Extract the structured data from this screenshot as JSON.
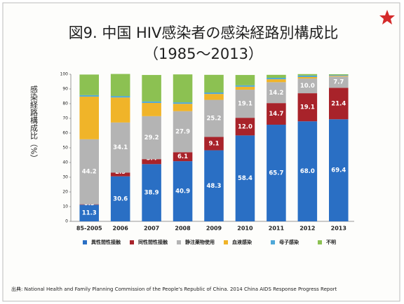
{
  "chart_data": {
    "type": "stacked_bar",
    "title": "図9. 中国 HIV感染者の感染経路別構成比",
    "subtitle": "（1985～2013）",
    "y_label": "感染経路構成比（%）",
    "source": "出典: National Health and Family Planning Commission of the People's Republic of China. 2014 China AIDS Response Progress Report",
    "categories": [
      "85-2005",
      "2006",
      "2007",
      "2008",
      "2009",
      "2010",
      "2011",
      "2012",
      "2013"
    ],
    "series": [
      {
        "name": "異性間性接触",
        "color": "#2a6fc4",
        "values": [
          11.3,
          30.6,
          38.9,
          40.9,
          48.3,
          58.4,
          65.7,
          68.0,
          69.4
        ],
        "value_labels": [
          "11.3",
          "30.6",
          "38.9",
          "40.9",
          "48.3",
          "58.4",
          "65.7",
          "68.0",
          "69.4"
        ]
      },
      {
        "name": "同性間性接触",
        "color": "#a8232a",
        "values": [
          0.3,
          2.5,
          3.4,
          6.1,
          9.1,
          12.0,
          14.7,
          19.1,
          21.4
        ],
        "value_labels": [
          "0.3",
          "2.5",
          "3.4",
          "6.1",
          "9.1",
          "12.0",
          "14.7",
          "19.1",
          "21.4"
        ]
      },
      {
        "name": "静注薬物使用",
        "color": "#b4b4b4",
        "values": [
          44.2,
          34.1,
          29.2,
          27.9,
          25.2,
          19.1,
          14.2,
          10.0,
          7.7
        ],
        "value_labels": [
          "44.2",
          "34.1",
          "29.2",
          "27.9",
          "25.2",
          "19.1",
          "14.2",
          "10.0",
          "7.7"
        ]
      },
      {
        "name": "血液感染",
        "color": "#f0b429",
        "values": [
          29,
          17,
          9,
          5,
          4,
          2,
          2,
          1,
          0.5
        ]
      },
      {
        "name": "母子感染",
        "color": "#4fa8d8",
        "values": [
          1,
          1,
          1,
          1,
          1,
          1,
          1,
          1,
          0.5
        ]
      },
      {
        "name": "不明",
        "color": "#8cc152",
        "values": [
          14,
          15,
          18,
          19,
          12,
          7,
          2,
          1,
          0.5
        ]
      }
    ],
    "ylim": [
      0,
      100
    ],
    "yticks": [
      0,
      10,
      20,
      30,
      40,
      50,
      60,
      70,
      80,
      90,
      100
    ],
    "grid": false
  }
}
